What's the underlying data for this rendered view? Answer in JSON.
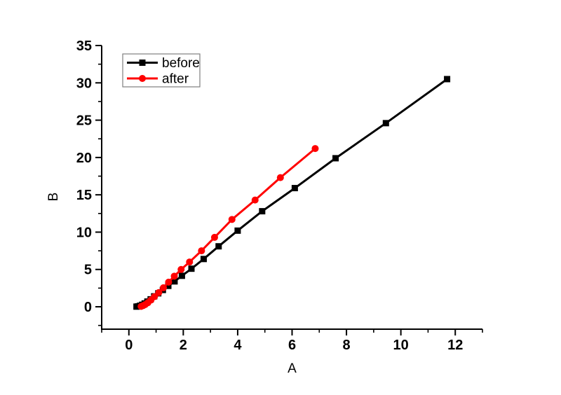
{
  "figure": {
    "background": "#ffffff",
    "axis_color": "#000000"
  },
  "chart_data": {
    "type": "line",
    "title": "",
    "xlabel": "A",
    "ylabel": "B",
    "xlim": [
      -1,
      13
    ],
    "ylim": [
      -3,
      35
    ],
    "x_major_ticks": [
      0,
      2,
      4,
      6,
      8,
      10,
      12
    ],
    "x_minor_ticks": [
      -1,
      1,
      3,
      5,
      7,
      9,
      11,
      13
    ],
    "y_major_ticks": [
      0,
      5,
      10,
      15,
      20,
      25,
      30,
      35
    ],
    "y_minor_ticks": [
      -2.5,
      2.5,
      7.5,
      12.5,
      17.5,
      22.5,
      27.5,
      32.5
    ],
    "grid": false,
    "legend": {
      "position": "top-left",
      "border_color": "#7f7f7f",
      "entries": [
        "before",
        "after"
      ]
    },
    "series": [
      {
        "name": "before",
        "color": "#000000",
        "marker": "square",
        "points": [
          [
            0.28,
            0.02
          ],
          [
            0.34,
            0.06
          ],
          [
            0.41,
            0.14
          ],
          [
            0.49,
            0.27
          ],
          [
            0.58,
            0.45
          ],
          [
            0.68,
            0.7
          ],
          [
            0.8,
            1.0
          ],
          [
            0.93,
            1.4
          ],
          [
            1.08,
            1.8
          ],
          [
            1.25,
            2.25
          ],
          [
            1.45,
            2.8
          ],
          [
            1.68,
            3.4
          ],
          [
            1.95,
            4.15
          ],
          [
            2.3,
            5.1
          ],
          [
            2.75,
            6.4
          ],
          [
            3.3,
            8.1
          ],
          [
            4.0,
            10.2
          ],
          [
            4.9,
            12.8
          ],
          [
            6.1,
            15.9
          ],
          [
            7.6,
            19.9
          ],
          [
            9.45,
            24.6
          ],
          [
            11.7,
            30.5
          ]
        ]
      },
      {
        "name": "after",
        "color": "#ff0000",
        "marker": "circle",
        "points": [
          [
            0.45,
            0.05
          ],
          [
            0.52,
            0.15
          ],
          [
            0.6,
            0.3
          ],
          [
            0.7,
            0.55
          ],
          [
            0.81,
            0.9
          ],
          [
            0.94,
            1.35
          ],
          [
            1.1,
            1.9
          ],
          [
            1.27,
            2.55
          ],
          [
            1.46,
            3.3
          ],
          [
            1.67,
            4.1
          ],
          [
            1.92,
            5.0
          ],
          [
            2.23,
            6.0
          ],
          [
            2.67,
            7.5
          ],
          [
            3.15,
            9.3
          ],
          [
            3.79,
            11.7
          ],
          [
            4.64,
            14.3
          ],
          [
            5.57,
            17.3
          ],
          [
            6.85,
            21.2
          ]
        ]
      }
    ]
  }
}
